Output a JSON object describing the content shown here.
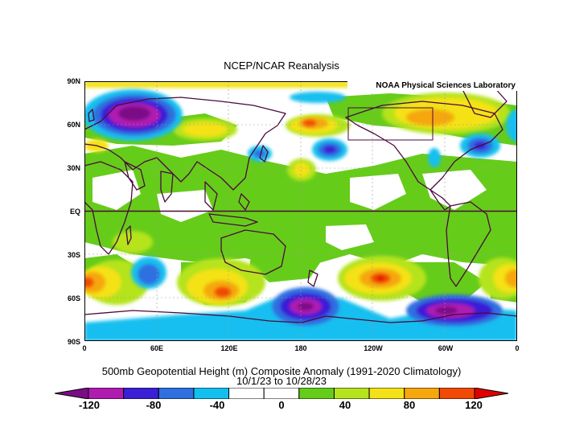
{
  "header": {
    "title": "NCEP/NCAR Reanalysis",
    "credit": "NOAA Physical Sciences Laboratory"
  },
  "axes": {
    "lat_labels": [
      "90N",
      "60N",
      "30N",
      "EQ",
      "30S",
      "60S",
      "90S"
    ],
    "lon_labels": [
      "0",
      "60E",
      "120E",
      "180",
      "120W",
      "60W",
      "0"
    ]
  },
  "caption": {
    "line1": "500mb Geopotential Height (m) Composite Anomaly (1991-2020 Climatology)",
    "line2": "10/1/23  to 10/28/23"
  },
  "colorbar": {
    "labels": [
      "-120",
      "-80",
      "-40",
      "0",
      "40",
      "80",
      "120"
    ],
    "colors": [
      "#7a0d86",
      "#b01bb0",
      "#3a1fd6",
      "#2f6fe0",
      "#12bfef",
      "#ffffff",
      "#ffffff",
      "#66cc1a",
      "#b5e31e",
      "#f4e218",
      "#f5a70d",
      "#f14a06",
      "#e00000"
    ]
  },
  "map": {
    "colors": {
      "deep_purple": "#7a0d86",
      "purple": "#b01bb0",
      "blue": "#3a1fd6",
      "mid_blue": "#2f6fe0",
      "cyan": "#12bfef",
      "green": "#66cc1a",
      "yellow_green": "#b5e31e",
      "yellow": "#f4e218",
      "orange": "#f5a70d",
      "red_orange": "#f14a06",
      "red": "#e00000",
      "coast": "#4a0a3c"
    }
  }
}
